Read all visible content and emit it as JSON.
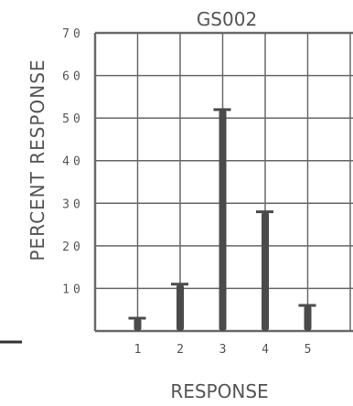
{
  "chart_data": {
    "type": "bar",
    "title": "GS002",
    "xlabel": "RESPONSE",
    "ylabel": "PERCENT RESPONSE",
    "categories": [
      "1",
      "2",
      "3",
      "4",
      "5"
    ],
    "values": [
      3,
      11,
      52,
      28,
      6
    ],
    "yticks": [
      "10",
      "20",
      "30",
      "40",
      "50",
      "60",
      "70"
    ],
    "ylim": [
      0,
      70
    ],
    "grid": true,
    "bar_color": "#4a4a4a",
    "grid_color": "#6a6a6a"
  }
}
